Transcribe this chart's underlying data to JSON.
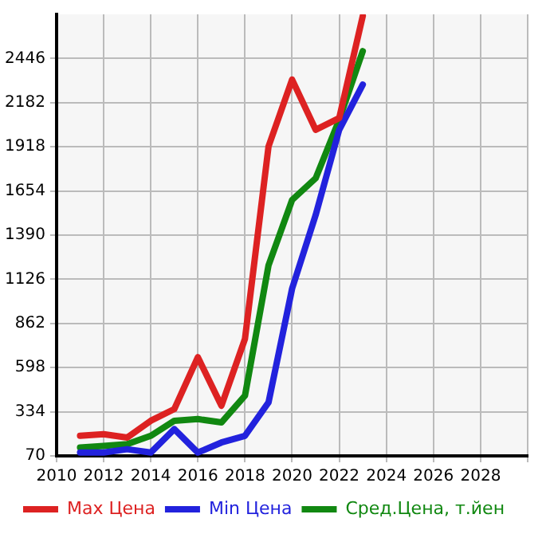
{
  "chart_data": {
    "type": "line",
    "x": [
      2011,
      2012,
      2013,
      2014,
      2015,
      2016,
      2017,
      2018,
      2019,
      2020,
      2021,
      2022,
      2023
    ],
    "series": [
      {
        "name": "Max Цена",
        "color": "#dd2222",
        "values": [
          190,
          200,
          180,
          280,
          350,
          660,
          370,
          770,
          1920,
          2320,
          2020,
          2090,
          2700
        ]
      },
      {
        "name": "Min Цена",
        "color": "#2222dd",
        "values": [
          90,
          90,
          110,
          90,
          230,
          90,
          150,
          190,
          390,
          1070,
          1510,
          2020,
          2290
        ]
      },
      {
        "name": "Сред.Цена, т.йен",
        "color": "#118811",
        "values": [
          120,
          130,
          140,
          190,
          280,
          290,
          270,
          430,
          1210,
          1600,
          1730,
          2080,
          2490
        ]
      }
    ],
    "xlim": [
      2010,
      2030
    ],
    "xticks": [
      2010,
      2012,
      2014,
      2016,
      2018,
      2020,
      2022,
      2024,
      2026,
      2028,
      {
        "value": 2030,
        "label": null
      }
    ],
    "ylim": [
      70,
      2710
    ],
    "yticks": [
      70,
      334,
      598,
      862,
      1126,
      1390,
      1654,
      1918,
      2182,
      2446
    ],
    "grid": true,
    "legend": "bottom",
    "marker": "none",
    "line_style": "solid"
  }
}
